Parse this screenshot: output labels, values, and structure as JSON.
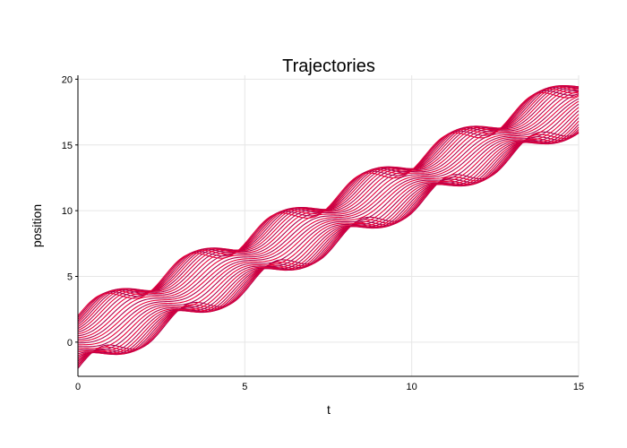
{
  "chart_data": {
    "type": "line",
    "title": "Trajectories",
    "xlabel": "t",
    "ylabel": "position",
    "xlim": [
      0,
      15
    ],
    "ylim": [
      -2.6,
      20.3
    ],
    "xticks": [
      0,
      5,
      10,
      15
    ],
    "yticks": [
      0,
      5,
      10,
      15,
      20
    ],
    "grid": true,
    "legend": "none",
    "series_count": 30,
    "series_colors": [
      "#b0004a",
      "#e8003a"
    ],
    "series_description": "30 trajectories rising linearly (~1.2 per unit t) with periodic bunching every ~2.6 units of t",
    "start_values": {
      "min": -2.0,
      "max": 2.0
    },
    "end_values": {
      "min": 16.7,
      "max": 19.6
    },
    "x": [
      0,
      1.5,
      3,
      4.5,
      6,
      7.5,
      9,
      10.5,
      12,
      13.5,
      15
    ],
    "series": [
      {
        "values": [
          2.0,
          3.3,
          5.0,
          6.6,
          8.3,
          9.8,
          11.7,
          13.3,
          15.3,
          17.2,
          19.6
        ]
      },
      {
        "values": [
          0.0,
          1.8,
          3.6,
          5.6,
          7.1,
          9.0,
          10.8,
          12.5,
          14.2,
          16.2,
          18.2
        ]
      },
      {
        "values": [
          -2.0,
          0.8,
          2.3,
          4.8,
          6.0,
          8.3,
          9.5,
          12.0,
          13.0,
          15.9,
          16.8
        ]
      }
    ]
  },
  "colors": {
    "background": "#ffffff",
    "grid": "#e6e6e6"
  }
}
